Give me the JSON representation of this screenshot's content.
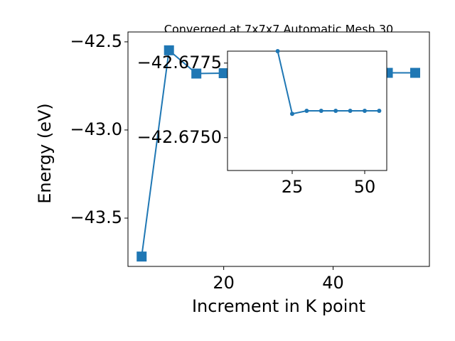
{
  "chart_data": [
    {
      "type": "line",
      "title": "Converged at 7x7x7 Automatic Mesh 30",
      "x_label": "Increment in K point",
      "y_label": "Energy (eV)",
      "x": [
        5,
        10,
        15,
        20,
        25,
        30,
        35,
        40,
        45,
        50,
        55
      ],
      "series": [
        {
          "color": "#1f77b4",
          "marker": "square",
          "values": [
            -43.718,
            -42.548,
            -42.68,
            -42.6779,
            -42.6758,
            -42.6759,
            -42.6759,
            -42.6759,
            -42.6759,
            -42.6759,
            -42.6759
          ]
        }
      ],
      "xlim": [
        2.5,
        57.6
      ],
      "ylim": [
        -43.774,
        -42.444
      ],
      "xticks": [
        20,
        40
      ],
      "yticks": [
        {
          "value": -43.5,
          "label": "−43.5"
        },
        {
          "value": -43.0,
          "label": "−43.0"
        },
        {
          "value": -42.5,
          "label": "−42.5"
        }
      ]
    },
    {
      "type": "line",
      "x": [
        20,
        25,
        30,
        35,
        40,
        45,
        50,
        55
      ],
      "series": [
        {
          "color": "#1f77b4",
          "marker": "circle",
          "values": [
            -42.6779,
            -42.6758,
            -42.6759,
            -42.6759,
            -42.6759,
            -42.6759,
            -42.6759,
            -42.6759
          ]
        }
      ],
      "xlim": [
        2.7,
        57.6
      ],
      "ylim": [
        -42.6739,
        -42.6779
      ],
      "xticks": [
        25,
        50
      ],
      "yticks": [
        {
          "value": -42.675,
          "label": "−42.6750"
        },
        {
          "value": -42.6775,
          "label": "−42.6775"
        }
      ]
    }
  ]
}
